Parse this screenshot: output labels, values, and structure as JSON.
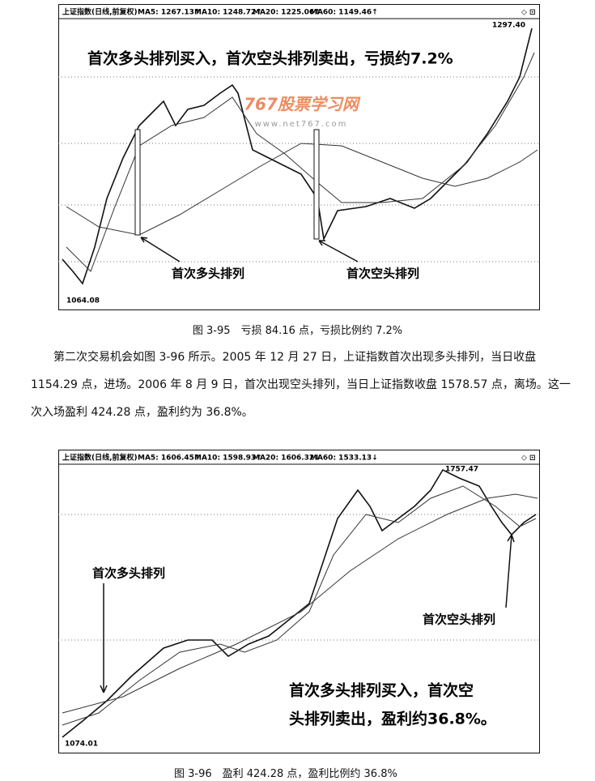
{
  "figures": [
    {
      "header": [
        "上证指数(日线,前复权)",
        "MA5: 1267.13↑",
        "MA10: 1248.72↑",
        "MA20: 1225.06↑",
        "MA60: 1149.46↑"
      ],
      "annotations": [
        "首次多头排列买入，首次空头排列卖出，亏损约7.2%",
        "首次多头排列",
        "首次空头排列"
      ],
      "price_labels": [
        "1297.40",
        "1064.08"
      ],
      "watermark": [
        "767股票学习网",
        "www.net767.com"
      ],
      "caption": "图 3-95　亏损 84.16 点，亏损比例约 7.2%"
    },
    {
      "header": [
        "上证指数(日线,前复权)",
        "MA5: 1606.45↑",
        "MA10: 1598.93↑",
        "MA20: 1606.32↓",
        "MA60: 1533.13↓"
      ],
      "annotations": [
        "首次多头排列",
        "首次空头排列",
        "首次多头排列买入，首次空",
        "头排列卖出，盈利约36.8%。"
      ],
      "price_labels": [
        "1757.47",
        "1074.01"
      ],
      "caption": "图 3-96　盈利 424.28 点，盈利比例约 36.8%"
    }
  ],
  "paragraph": "第二次交易机会如图 3-96 所示。2005 年 12 月 27 日，上证指数首次出现多头排列，当日收盘 1154.29 点，进场。2006 年 8 月 9 日，首次出现空头排列，当日上证指数收盘 1578.57 点，离场。这一次入场盈利 424.28 点，盈利约为 36.8%。"
}
